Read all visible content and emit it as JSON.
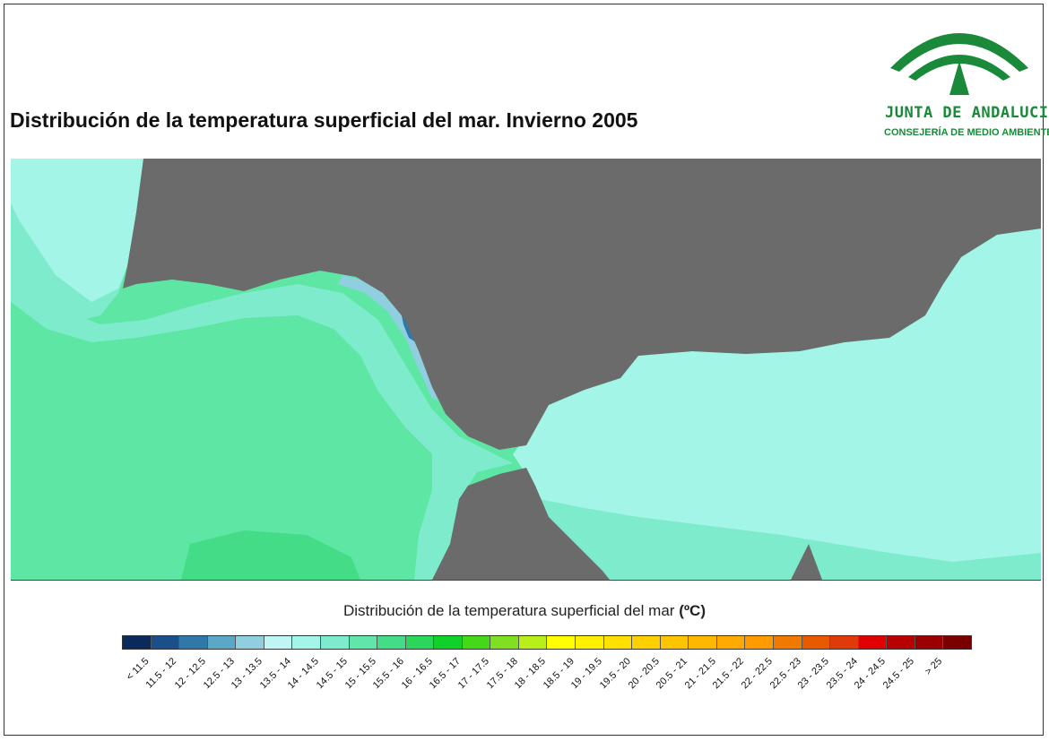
{
  "title": "Distribución de la temperatura superficial del mar. Invierno 2005",
  "logo": {
    "line1": "JUNTA DE ANDALUCIA",
    "line2": "CONSEJERÍA DE MEDIO AMBIENTE",
    "green": "#1a8a3a"
  },
  "legend": {
    "title": "Distribución de la temperatura superficial del mar",
    "unit": "(ºC)",
    "classes": [
      {
        "label": "< 11.5",
        "color": "#0b2a5c"
      },
      {
        "label": "11.5 - 12",
        "color": "#1b4f8a"
      },
      {
        "label": "12 - 12.5",
        "color": "#2f78a8"
      },
      {
        "label": "12.5 - 13",
        "color": "#5aa7c8"
      },
      {
        "label": "13 - 13.5",
        "color": "#8fcfe0"
      },
      {
        "label": "13.5 - 14",
        "color": "#bff5f5"
      },
      {
        "label": "14 - 14.5",
        "color": "#a3f5e8"
      },
      {
        "label": "14.5 - 15",
        "color": "#7eeccc"
      },
      {
        "label": "15 - 15.5",
        "color": "#5fe6a8"
      },
      {
        "label": "15.5 - 16",
        "color": "#44dc86"
      },
      {
        "label": "16 - 16.5",
        "color": "#2bd65a"
      },
      {
        "label": "16.5 - 17",
        "color": "#10d02a"
      },
      {
        "label": "17 - 17.5",
        "color": "#44d818"
      },
      {
        "label": "17.5 - 18",
        "color": "#7ee020"
      },
      {
        "label": "18 - 18.5",
        "color": "#b8ee1a"
      },
      {
        "label": "18.5 - 19",
        "color": "#ffff00"
      },
      {
        "label": "19 - 19.5",
        "color": "#fff000"
      },
      {
        "label": "19.5 - 20",
        "color": "#ffe000"
      },
      {
        "label": "20 - 20.5",
        "color": "#ffd000"
      },
      {
        "label": "20.5 - 21",
        "color": "#ffc400"
      },
      {
        "label": "21 - 21.5",
        "color": "#ffb800"
      },
      {
        "label": "21.5 - 22",
        "color": "#ffaa00"
      },
      {
        "label": "22 - 22.5",
        "color": "#ff9a00"
      },
      {
        "label": "22.5 - 23",
        "color": "#f07a00"
      },
      {
        "label": "23 - 23.5",
        "color": "#e85a00"
      },
      {
        "label": "23.5 - 24",
        "color": "#e03a0a"
      },
      {
        "label": "24 - 24.5",
        "color": "#e00000"
      },
      {
        "label": "24.5 - 25",
        "color": "#b80000"
      },
      {
        "label": "> 25",
        "color": "#9a0000"
      },
      {
        "label": "",
        "color": "#7a0000"
      }
    ]
  },
  "map_colors": {
    "land": "#6b6b6b",
    "sea_atlantic_warm": "#5de6a4",
    "sea_atlantic_warmer": "#42dc80",
    "sea_coast": "#7eeccc",
    "sea_mediterranean": "#a3f5e8",
    "sea_cold_coast": "#8fcfe0",
    "sea_cold_spot": "#2f78a8"
  }
}
